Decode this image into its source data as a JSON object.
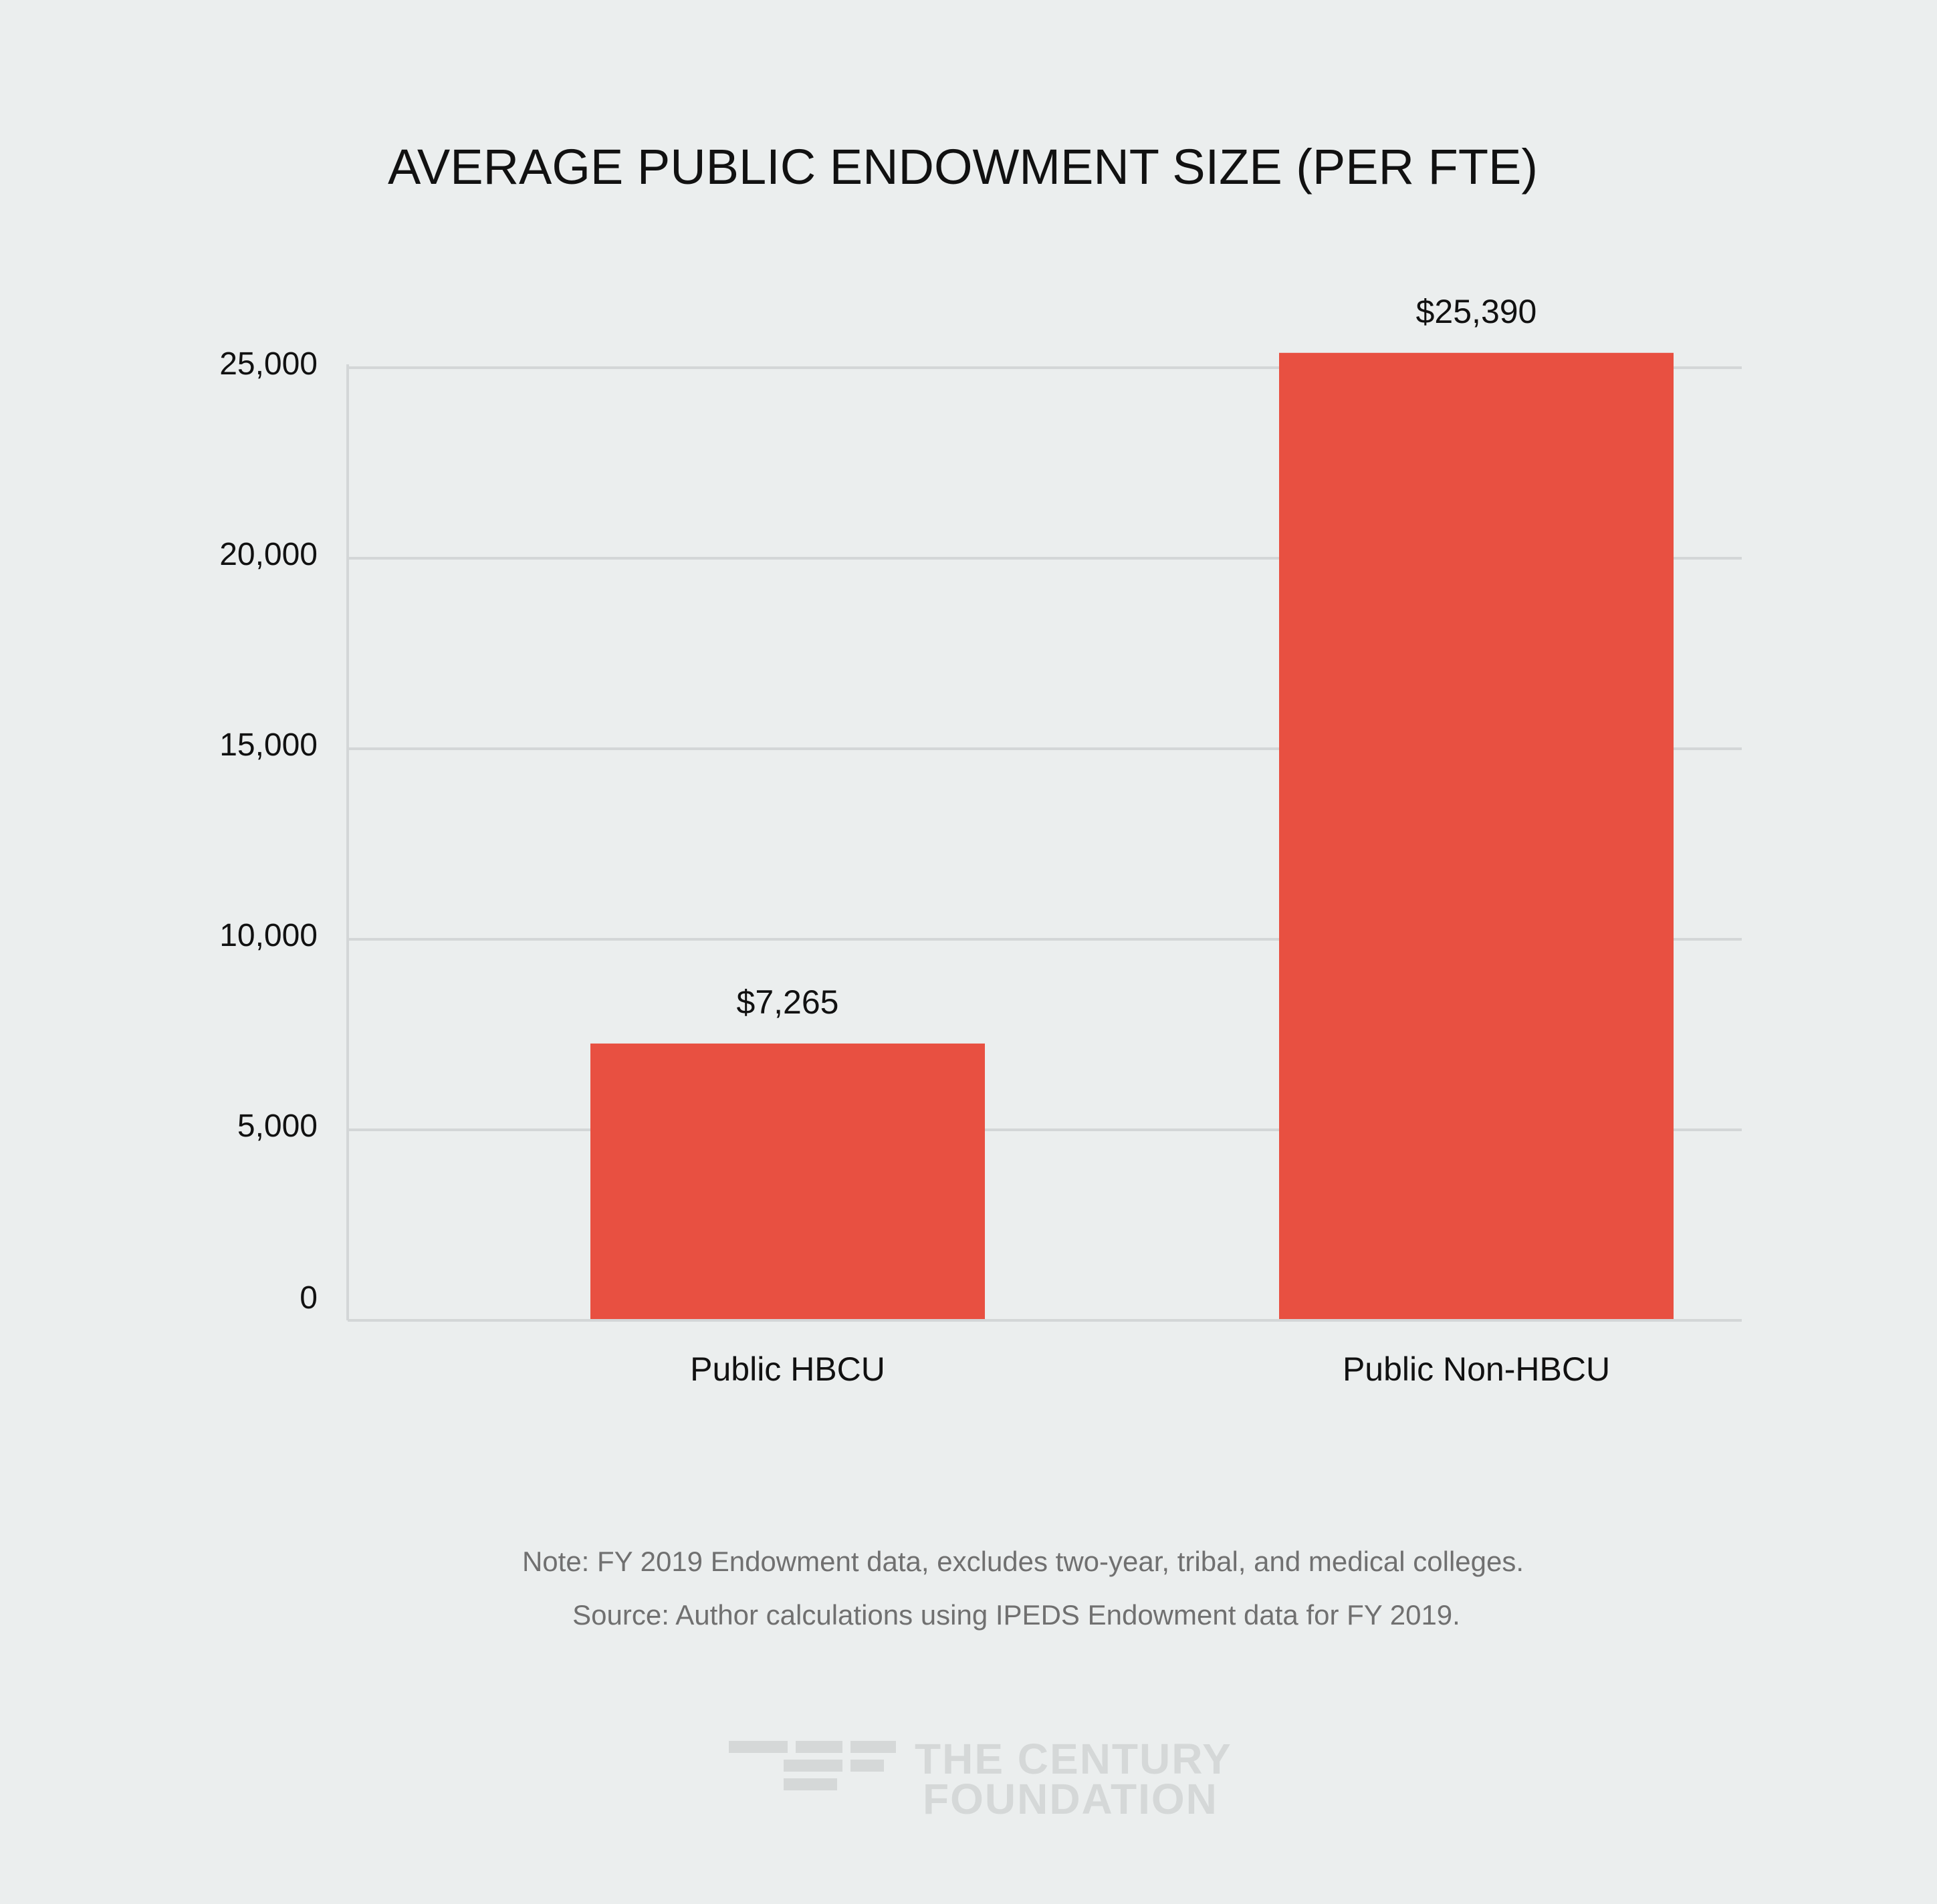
{
  "chart_data": {
    "type": "bar",
    "title": "AVERAGE PUBLIC ENDOWMENT SIZE (PER FTE)",
    "categories": [
      "Public HBCU",
      "Public Non-HBCU"
    ],
    "values": [
      7265,
      25390
    ],
    "value_labels": [
      "$7,265",
      "$25,390"
    ],
    "xlabel": "",
    "ylabel": "",
    "ylim": [
      0,
      25000
    ],
    "yticks": [
      0,
      5000,
      10000,
      15000,
      20000,
      25000
    ],
    "ytick_labels": [
      "0",
      "5,000",
      "10,000",
      "15,000",
      "20,000",
      "25,000"
    ],
    "grid": true,
    "bar_color": "#e85041",
    "grid_color": "#d3d6d7",
    "background_color": "#ebeeee"
  },
  "footer": {
    "note": "Note: FY 2019 Endowment data, excludes two-year, tribal, and medical colleges.",
    "source": "Source:  Author calculations using IPEDS Endowment data for FY 2019."
  },
  "logo": {
    "line1": "THE CENTURY",
    "line2": "FOUNDATION"
  }
}
